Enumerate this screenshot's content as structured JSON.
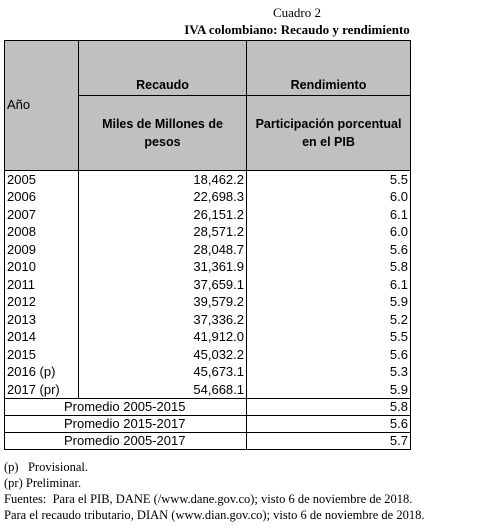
{
  "header": {
    "title": "Cuadro 2",
    "subtitle": "IVA colombiano: Recaudo y rendimiento"
  },
  "table": {
    "columns": {
      "year": "Año",
      "group1": "Recaudo",
      "group2": "Rendimiento",
      "unit1": "Miles de Millones de pesos",
      "unit2": "Participación porcentual en el PIB"
    },
    "rows": [
      [
        "2005",
        "18,462.2",
        "5.5"
      ],
      [
        "2006",
        "22,698.3",
        "6.0"
      ],
      [
        "2007",
        "26,151.2",
        "6.1"
      ],
      [
        "2008",
        "28,571.2",
        "6.0"
      ],
      [
        "2009",
        "28,048.7",
        "5.6"
      ],
      [
        "2010",
        "31,361.9",
        "5.8"
      ],
      [
        "2011",
        "37,659.1",
        "6.1"
      ],
      [
        "2012",
        "39,579.2",
        "5.9"
      ],
      [
        "2013",
        "37,336.2",
        "5.2"
      ],
      [
        "2014",
        "41,912.0",
        "5.5"
      ],
      [
        "2015",
        "45,032.2",
        "5.6"
      ],
      [
        "2016 (p)",
        "45,673.1",
        "5.3"
      ],
      [
        "2017 (pr)",
        "54,668.1",
        "5.9"
      ]
    ],
    "averages": [
      [
        "Promedio 2005-2015",
        "5.8"
      ],
      [
        "Promedio 2015-2017",
        "5.6"
      ],
      [
        "Promedio 2005-2017",
        "5.7"
      ]
    ]
  },
  "notes": [
    "(p)   Provisional.",
    "(pr) Preliminar.",
    "Fuentes:  Para el PIB, DANE (/www.dane.gov.co); visto 6 de noviembre de 2018.",
    "Para el recaudo tributario, DIAN (www.dian.gov.co); visto 6 de noviembre de 2018."
  ]
}
